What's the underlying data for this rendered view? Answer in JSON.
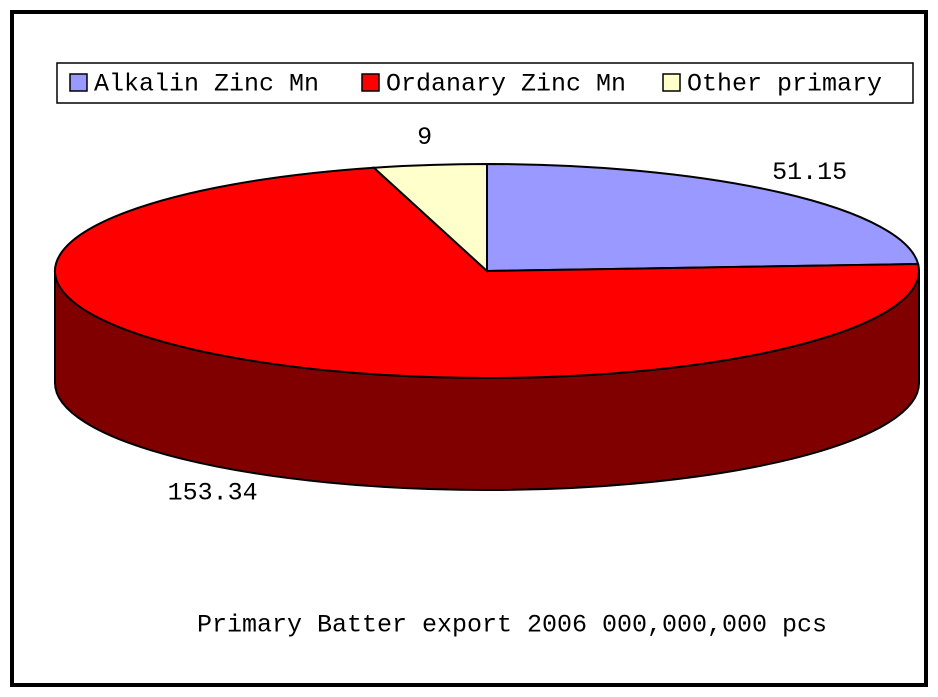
{
  "chart_data": {
    "type": "pie3d",
    "title": "Primary Batter export 2006 000,000,000 pcs",
    "categories": [
      "Alkalin Zinc Mn",
      "Ordanary Zinc Mn",
      "Other primary"
    ],
    "values": [
      51.15,
      153.34,
      9
    ],
    "colors": [
      "#9999ff",
      "#ff0000",
      "#ffffcc"
    ],
    "legend": "top"
  }
}
